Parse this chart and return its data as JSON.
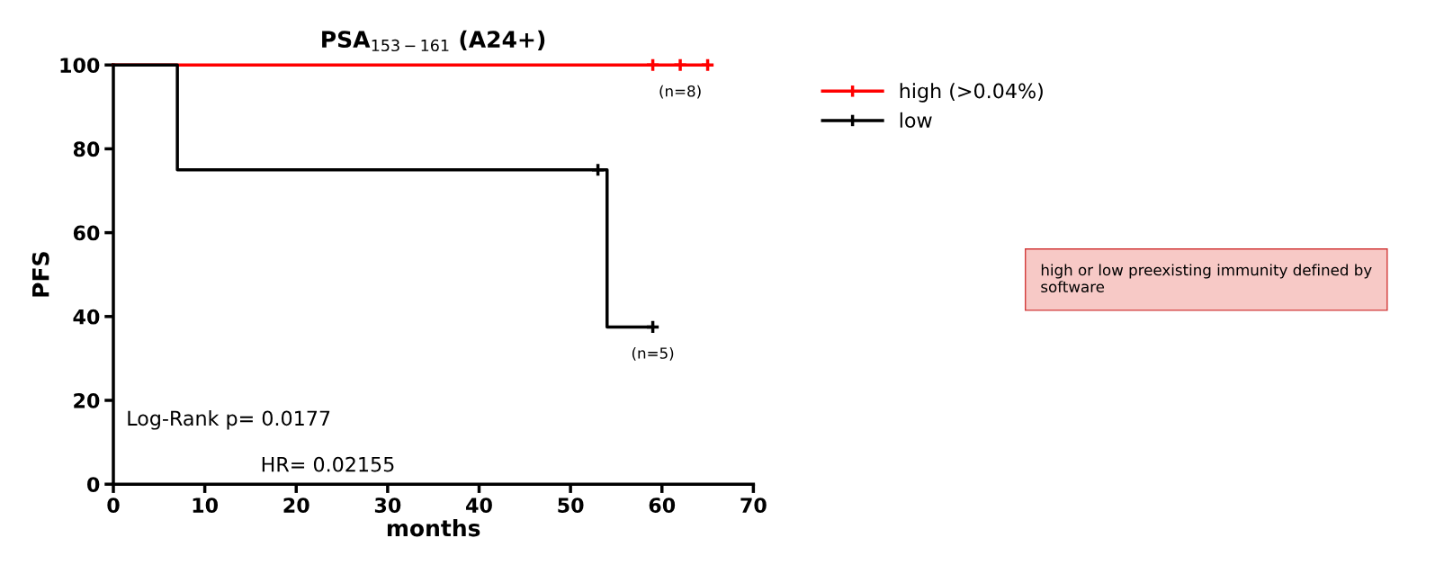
{
  "chart_data": {
    "type": "step",
    "title": "PSA$_{153−161}$ (A24+)",
    "xlabel": "months",
    "ylabel": "PFS",
    "xlim": [
      0,
      70
    ],
    "xticks": [
      0,
      10,
      20,
      30,
      40,
      50,
      60,
      70
    ],
    "ylim": [
      0,
      100
    ],
    "yticks": [
      0,
      20,
      40,
      60,
      80,
      100
    ],
    "grid": false,
    "legend": "right",
    "line_style": "solid",
    "series": [
      {
        "name": "high (>0.04%)",
        "color": "#ff0000",
        "x": [
          0,
          65
        ],
        "values": [
          100,
          100
        ]
      },
      {
        "name": "low",
        "color": "#000000",
        "x": [
          0,
          7,
          54,
          59
        ],
        "values": [
          100,
          75,
          37.5,
          37.5
        ]
      },
      {
        "type": "scatter",
        "color": "#ff0000",
        "marker": "cross",
        "x": [
          59,
          62,
          65
        ],
        "values": [
          100,
          100,
          100
        ]
      },
      {
        "type": "scatter",
        "color": "#000000",
        "marker": "cross",
        "x": [
          53,
          59
        ],
        "values": [
          75,
          37.5
        ]
      }
    ],
    "annotations": [
      {
        "text": "(n=8)",
        "x": 62,
        "y": 100
      },
      {
        "text": "(n=5)",
        "x": 59,
        "y": 37.5
      },
      "Log-Rank p= 0.0177",
      "HR= 0.02155",
      "high or low preexisting immunity defined by software"
    ]
  }
}
